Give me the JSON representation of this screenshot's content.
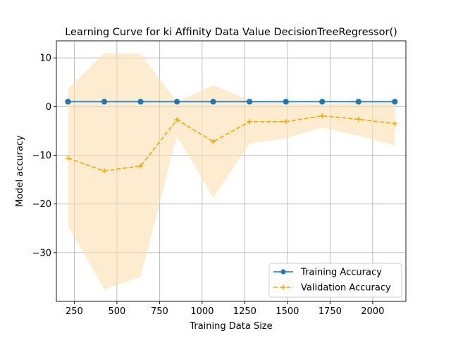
{
  "chart_data": {
    "type": "line",
    "title": "Learning Curve for ki Affinity Data Value DecisionTreeRegressor()",
    "xlabel": "Training Data Size",
    "ylabel": "Model accuracy",
    "xlim": [
      145,
      2195
    ],
    "ylim": [
      -40,
      13.5
    ],
    "x_ticks": [
      250,
      500,
      750,
      1000,
      1250,
      1500,
      1750,
      2000
    ],
    "y_ticks": [
      10,
      0,
      -10,
      -20,
      -30
    ],
    "x_tick_labels": [
      "250",
      "500",
      "750",
      "1000",
      "1250",
      "1500",
      "1750",
      "2000"
    ],
    "y_tick_labels": [
      "10",
      "0",
      "−10",
      "−20",
      "−30"
    ],
    "grid": true,
    "legend_position": "lower-right",
    "x": [
      213,
      426,
      639,
      852,
      1065,
      1278,
      1491,
      1704,
      1917,
      2130
    ],
    "series": [
      {
        "name": "Training Accuracy",
        "color": "#1f77b4",
        "linestyle": "solid",
        "marker": "circle",
        "values": [
          1.0,
          1.0,
          1.0,
          1.0,
          1.0,
          1.0,
          1.0,
          1.0,
          1.0,
          1.0
        ]
      },
      {
        "name": "Validation Accuracy",
        "color": "#ffa500",
        "linestyle": "dashed",
        "marker": "plus",
        "values": [
          -10.6,
          -13.2,
          -12.2,
          -2.7,
          -7.2,
          -3.1,
          -3.1,
          -1.9,
          -2.6,
          -3.5
        ],
        "band_upper": [
          3.6,
          11.0,
          10.8,
          1.0,
          4.4,
          1.3,
          0.9,
          0.4,
          1.0,
          1.0
        ],
        "band_lower": [
          -24.5,
          -37.5,
          -35.0,
          -6.0,
          -18.7,
          -7.6,
          -6.5,
          -4.3,
          -6.0,
          -8.0
        ],
        "band_color": "#fbe0b0"
      }
    ]
  }
}
